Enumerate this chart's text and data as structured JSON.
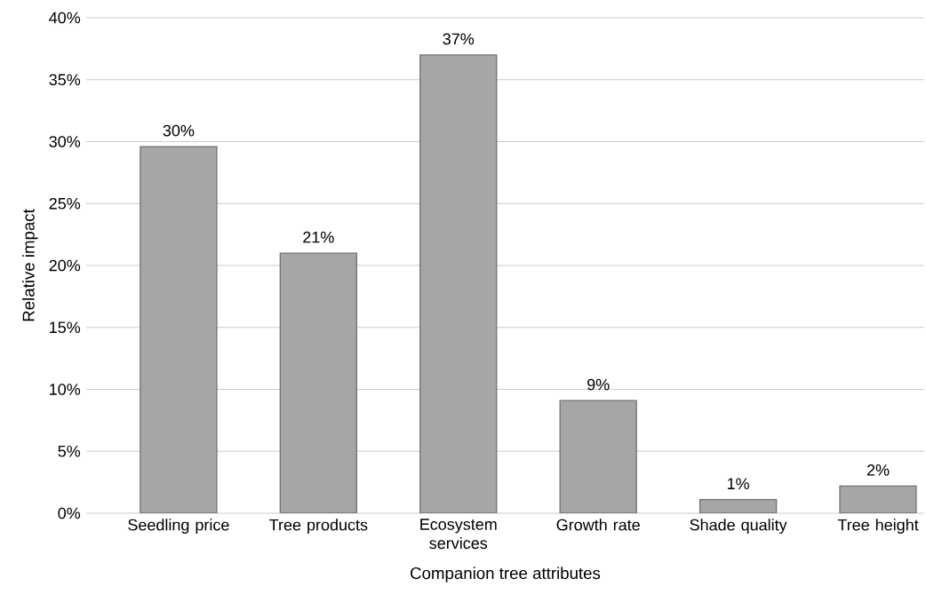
{
  "chart_data": {
    "type": "bar",
    "xlabel": "Companion tree attributes",
    "ylabel": "Relative impact",
    "categories": [
      "Seedling price",
      "Tree products",
      "Ecosystem services",
      "Growth rate",
      "Shade quality",
      "Tree height"
    ],
    "values": [
      29.6,
      21.0,
      37.0,
      9.1,
      1.1,
      2.2
    ],
    "value_labels": [
      "30%",
      "21%",
      "37%",
      "9%",
      "1%",
      "2%"
    ],
    "color": "#a6a6a6",
    "ylim": [
      0,
      40
    ],
    "yticks": [
      {
        "value": 0,
        "label": "0%"
      },
      {
        "value": 5,
        "label": "5%"
      },
      {
        "value": 10,
        "label": "10%"
      },
      {
        "value": 15,
        "label": "15%"
      },
      {
        "value": 20,
        "label": "20%"
      },
      {
        "value": 25,
        "label": "25%"
      },
      {
        "value": 30,
        "label": "30%"
      },
      {
        "value": 35,
        "label": "35%"
      },
      {
        "value": 40,
        "label": "40%"
      }
    ],
    "grid": "y"
  }
}
